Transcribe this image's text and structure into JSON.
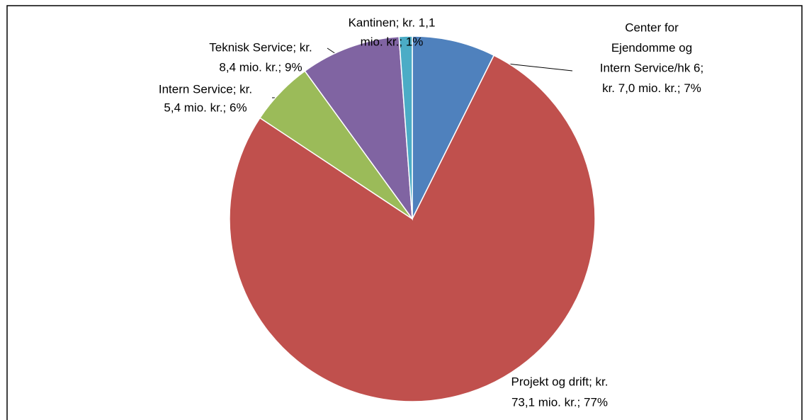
{
  "chart_data": {
    "type": "pie",
    "values": [
      7.0,
      73.1,
      5.4,
      8.4,
      1.1
    ],
    "value_labels": [
      [
        "Center for",
        "Ejendomme og",
        "Intern Service/hk 6;",
        "kr. 7,0 mio. kr.; 7%"
      ],
      [
        "Projekt og drift; kr.",
        "73,1 mio. kr.; 77%"
      ],
      [
        "Intern Service; kr.",
        "5,4 mio. kr.; 6%"
      ],
      [
        "Teknisk Service; kr.",
        "8,4 mio. kr.; 9%"
      ],
      [
        "Kantinen; kr. 1,1",
        "mio. kr.; 1%"
      ]
    ],
    "colors": [
      "#4f81bd",
      "#c0504d",
      "#9bbb59",
      "#8064a2",
      "#4bacc6"
    ]
  }
}
